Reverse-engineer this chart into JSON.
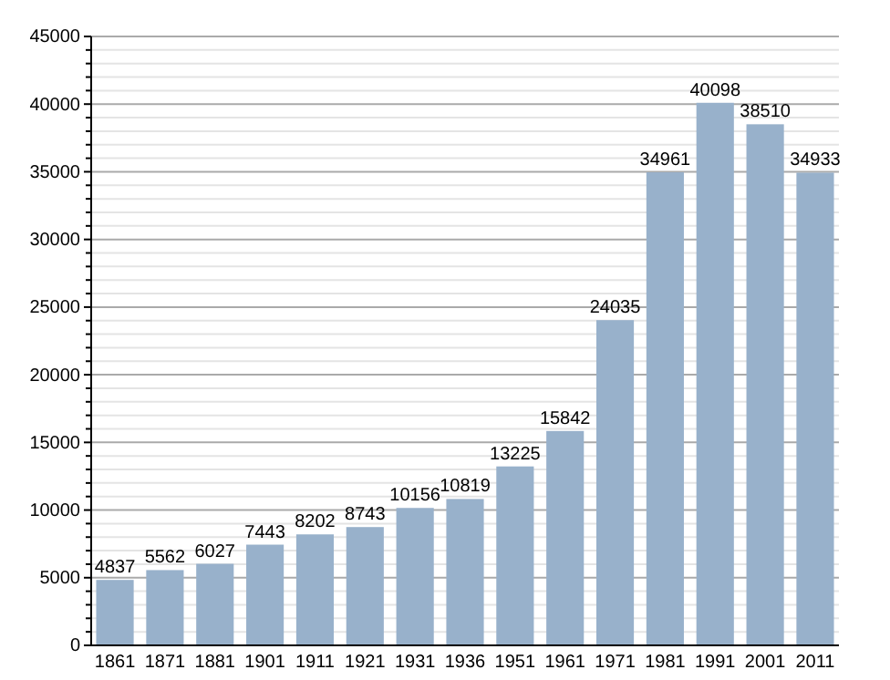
{
  "chart_data": {
    "type": "bar",
    "categories": [
      "1861",
      "1871",
      "1881",
      "1901",
      "1911",
      "1921",
      "1931",
      "1936",
      "1951",
      "1961",
      "1971",
      "1981",
      "1991",
      "2001",
      "2011"
    ],
    "values": [
      4837,
      5562,
      6027,
      7443,
      8202,
      8743,
      10156,
      10819,
      13225,
      15842,
      24035,
      34961,
      40098,
      38510,
      34933
    ],
    "color": "#98b1cb",
    "ylim": [
      0,
      45000
    ],
    "yticks": [
      0,
      {
        "value": 1000,
        "label": null
      },
      {
        "value": 2000,
        "label": null
      },
      {
        "value": 3000,
        "label": null
      },
      {
        "value": 4000,
        "label": null
      },
      5000,
      {
        "value": 6000,
        "label": null
      },
      {
        "value": 7000,
        "label": null
      },
      {
        "value": 8000,
        "label": null
      },
      {
        "value": 9000,
        "label": null
      },
      10000,
      {
        "value": 11000,
        "label": null
      },
      {
        "value": 12000,
        "label": null
      },
      {
        "value": 13000,
        "label": null
      },
      {
        "value": 14000,
        "label": null
      },
      15000,
      {
        "value": 16000,
        "label": null
      },
      {
        "value": 17000,
        "label": null
      },
      {
        "value": 18000,
        "label": null
      },
      {
        "value": 19000,
        "label": null
      },
      20000,
      {
        "value": 21000,
        "label": null
      },
      {
        "value": 22000,
        "label": null
      },
      {
        "value": 23000,
        "label": null
      },
      {
        "value": 24000,
        "label": null
      },
      25000,
      {
        "value": 26000,
        "label": null
      },
      {
        "value": 27000,
        "label": null
      },
      {
        "value": 28000,
        "label": null
      },
      {
        "value": 29000,
        "label": null
      },
      30000,
      {
        "value": 31000,
        "label": null
      },
      {
        "value": 32000,
        "label": null
      },
      {
        "value": 33000,
        "label": null
      },
      {
        "value": 34000,
        "label": null
      },
      35000,
      {
        "value": 36000,
        "label": null
      },
      {
        "value": 37000,
        "label": null
      },
      {
        "value": 38000,
        "label": null
      },
      {
        "value": 39000,
        "label": null
      },
      40000,
      {
        "value": 41000,
        "label": null
      },
      {
        "value": 42000,
        "label": null
      },
      {
        "value": 43000,
        "label": null
      },
      {
        "value": 44000,
        "label": null
      },
      45000
    ],
    "grid": true,
    "data_labels": true
  }
}
